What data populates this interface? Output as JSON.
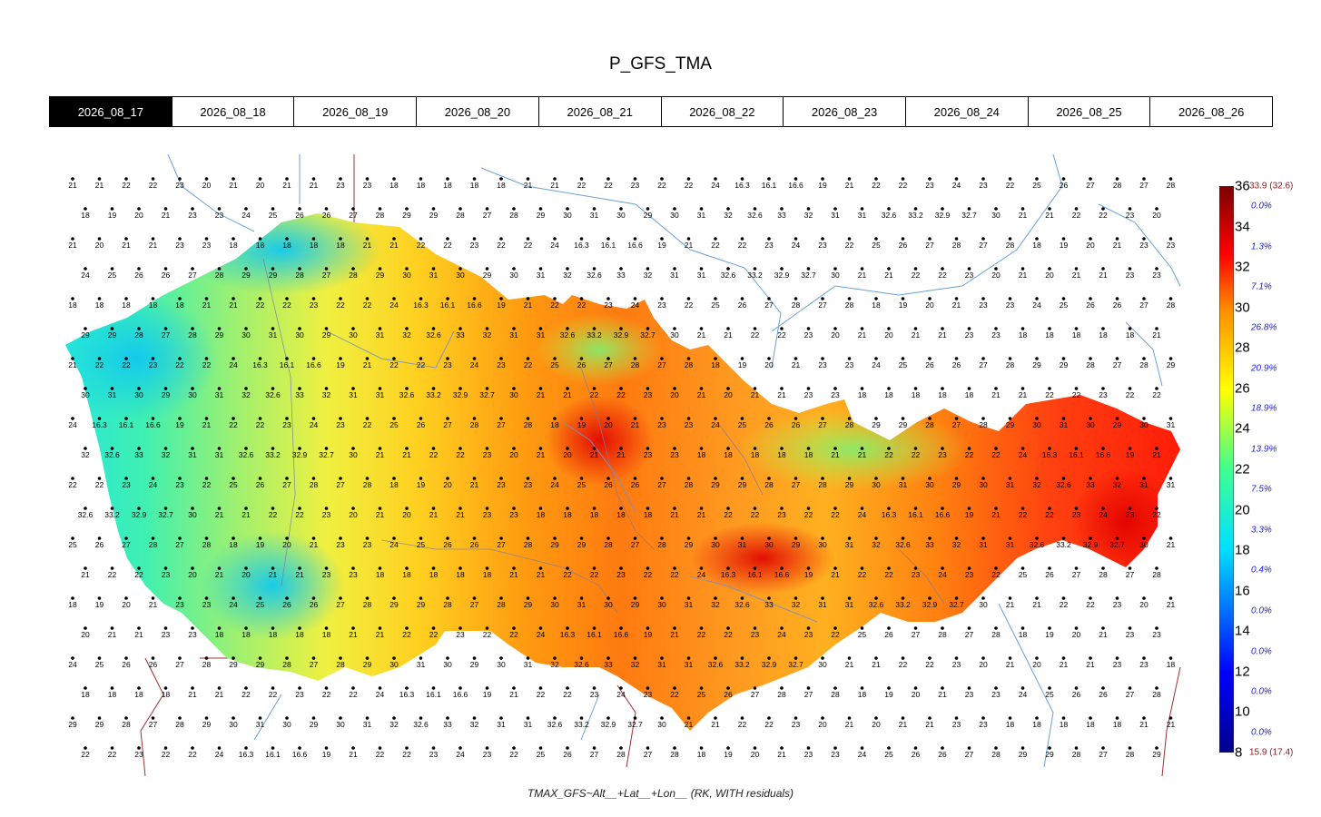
{
  "title": "P_GFS_TMA",
  "tabs": [
    {
      "label": "2026_08_17",
      "active": true
    },
    {
      "label": "2026_08_18",
      "active": false
    },
    {
      "label": "2026_08_19",
      "active": false
    },
    {
      "label": "2026_08_20",
      "active": false
    },
    {
      "label": "2026_08_21",
      "active": false
    },
    {
      "label": "2026_08_22",
      "active": false
    },
    {
      "label": "2026_08_23",
      "active": false
    },
    {
      "label": "2026_08_24",
      "active": false
    },
    {
      "label": "2026_08_25",
      "active": false
    },
    {
      "label": "2026_08_26",
      "active": false
    }
  ],
  "legend": {
    "ticks": [
      "36",
      "34",
      "32",
      "30",
      "28",
      "26",
      "24",
      "22",
      "20",
      "18",
      "16",
      "14",
      "12",
      "10",
      "8"
    ],
    "percents": [
      "0.0%",
      "1.3%",
      "7.1%",
      "26.8%",
      "20.9%",
      "18.9%",
      "13.9%",
      "7.5%",
      "3.3%",
      "0.4%",
      "0.0%",
      "0.0%",
      "0.0%",
      "0.0%"
    ],
    "max_label": "33.9 (32.6)",
    "min_label": "15.9 (17.4)",
    "colors": [
      "#00008b",
      "#0000ff",
      "#00bfff",
      "#00e5d0",
      "#7fff50",
      "#ffff00",
      "#ffb000",
      "#ff6000",
      "#ff0000",
      "#8b0000"
    ]
  },
  "caption": "TMAX_GFS~Alt__+Lat__+Lon__ (RK, WITH residuals)",
  "stations_sample": [
    "21",
    "21",
    "22",
    "22",
    "23",
    "20",
    "21",
    "20",
    "21",
    "21",
    "23",
    "23",
    "18",
    "18",
    "18",
    "18",
    "18",
    "21",
    "21",
    "22",
    "22",
    "23",
    "22",
    "22",
    "24",
    "16.3",
    "16.1",
    "16.6",
    "19",
    "21",
    "22",
    "22",
    "23",
    "24",
    "23",
    "22",
    "25",
    "26",
    "27",
    "28",
    "27",
    "28",
    "18",
    "19",
    "20",
    "21",
    "23",
    "23",
    "24",
    "25",
    "26",
    "26",
    "27",
    "28",
    "29",
    "29",
    "28",
    "27",
    "28",
    "29",
    "30",
    "31",
    "30",
    "29",
    "30",
    "31",
    "32",
    "32.6",
    "33",
    "32",
    "31",
    "31",
    "32.6",
    "33.2",
    "32.9",
    "32.7",
    "30"
  ]
}
